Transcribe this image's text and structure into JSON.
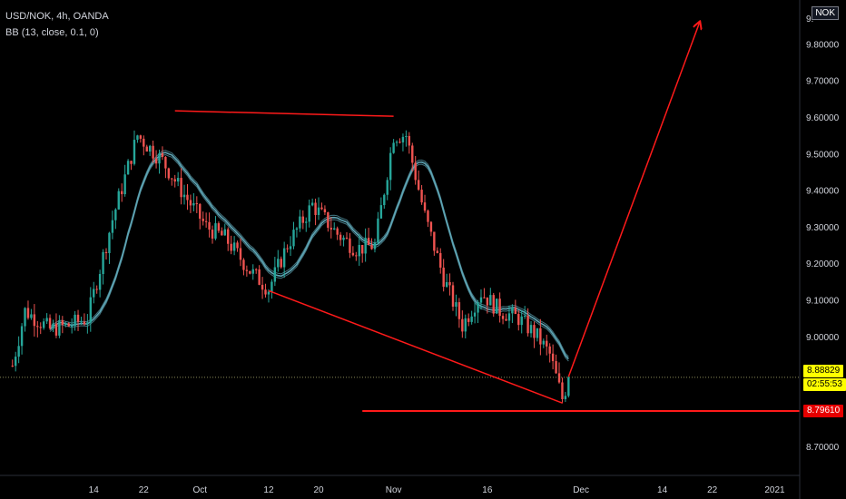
{
  "header": {
    "symbol_line": "USD/NOK, 4h, OANDA",
    "indicator_line": "BB (13, close, 0.1, 0)",
    "currency": "NOK"
  },
  "price_badges": {
    "last_price": "8.88829",
    "countdown": "02:55:53",
    "level_price": "8.79610"
  },
  "colors": {
    "background": "#000000",
    "up_candle": "#26a69a",
    "down_candle": "#ef5350",
    "bb_line": "#5ea5b5",
    "drawing": "#ff1a1a",
    "last_price_badge": "#ffff00",
    "level_badge": "#e60000",
    "axis_text": "#d1d4dc"
  },
  "chart_data": {
    "type": "candlestick",
    "title": "USD/NOK, 4h, OANDA",
    "indicator": "BB (13, close, 0.1, 0)",
    "y_axis": {
      "ticks": [
        "9.80000",
        "9.70000",
        "9.60000",
        "9.50000",
        "9.40000",
        "9.30000",
        "9.20000",
        "9.10000",
        "9.00000",
        "8.90000",
        "8.80000",
        "8.70000"
      ],
      "tick_values": [
        9.8,
        9.7,
        9.6,
        9.5,
        9.4,
        9.3,
        9.2,
        9.1,
        9.0,
        8.9,
        8.8,
        8.7
      ],
      "range": [
        8.62,
        9.92
      ],
      "partial_top_label": "9."
    },
    "x_axis": {
      "tick_labels": [
        "14",
        "22",
        "Oct",
        "12",
        "20",
        "Nov",
        "16",
        "Dec",
        "14",
        "22",
        "2021"
      ],
      "tick_days": [
        13,
        21,
        30,
        41,
        49,
        61,
        76,
        91,
        104,
        112,
        122
      ],
      "range_days": [
        -2,
        126
      ],
      "unit": "days after 2020-09-01 (x positions of ticks)"
    },
    "price_path_days": [
      0,
      2,
      6,
      9,
      12,
      16,
      20,
      24,
      27,
      31,
      34,
      38,
      41,
      44,
      48,
      52,
      55,
      58,
      61,
      63,
      66,
      69,
      72,
      75,
      78,
      81,
      84,
      86,
      88,
      89
    ],
    "price_path_values": [
      8.92,
      9.07,
      9.02,
      9.03,
      9.05,
      9.32,
      9.55,
      9.48,
      9.4,
      9.3,
      9.27,
      9.18,
      9.13,
      9.25,
      9.36,
      9.28,
      9.24,
      9.25,
      9.55,
      9.55,
      9.33,
      9.16,
      9.03,
      9.12,
      9.07,
      9.05,
      9.0,
      8.95,
      8.83,
      8.88
    ],
    "last_price": 8.88829,
    "level_price": 8.7961,
    "drawings": [
      {
        "type": "trendline",
        "from_day": 26,
        "from_price": 9.617,
        "to_day": 61,
        "to_price": 9.602
      },
      {
        "type": "trendline",
        "from_day": 41,
        "from_price": 9.125,
        "to_day": 88,
        "to_price": 8.818
      },
      {
        "type": "horizontal",
        "from_day": 56,
        "to_day": 126,
        "price": 8.7961
      },
      {
        "type": "arrow",
        "from_day": 89,
        "from_price": 8.89,
        "to_day": 110,
        "to_price": 9.86
      }
    ]
  }
}
